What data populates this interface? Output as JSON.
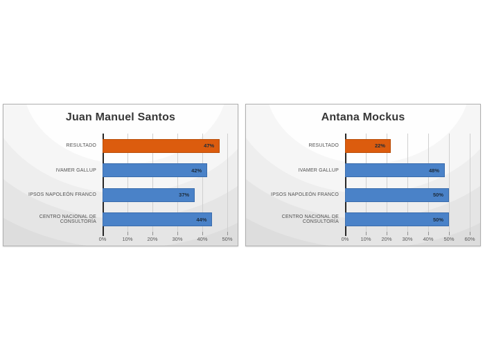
{
  "colors": {
    "resultado_orange": "#DC5C0E",
    "resultado_orange_border": "#B84D08",
    "pollster_blue": "#4A82C8",
    "pollster_blue_border": "#3A6CAC",
    "axis_line": "#262626",
    "gridline": "#cfcfcf"
  },
  "chart_data": [
    {
      "type": "bar",
      "orientation": "horizontal",
      "title": "Juan Manuel Santos",
      "categories": [
        "RESULTADO",
        "IVAMER GALLUP",
        "IPSOS NAPOLEÓN FRANCO",
        "CENTRO NACIONAL DE CONSULTORÍA"
      ],
      "values": [
        47,
        42,
        37,
        44
      ],
      "value_labels": [
        "47%",
        "42%",
        "37%",
        "44%"
      ],
      "bar_colors": [
        "#DC5C0E",
        "#4A82C8",
        "#4A82C8",
        "#4A82C8"
      ],
      "bar_border_colors": [
        "#B84D08",
        "#3A6CAC",
        "#3A6CAC",
        "#3A6CAC"
      ],
      "xlim": [
        0,
        50
      ],
      "xticks": [
        0,
        10,
        20,
        30,
        40,
        50
      ],
      "xtick_labels": [
        "0%",
        "10%",
        "20%",
        "30%",
        "40%",
        "50%"
      ],
      "grid": true,
      "legend": "none"
    },
    {
      "type": "bar",
      "orientation": "horizontal",
      "title": "Antana Mockus",
      "categories": [
        "RESULTADO",
        "IVAMER GALLUP",
        "IPSOS NAPOLEÓN FRANCO",
        "CENTRO NACIONAL DE CONSULTORÍA"
      ],
      "values": [
        22,
        48,
        50,
        50
      ],
      "value_labels": [
        "22%",
        "48%",
        "50%",
        "50%"
      ],
      "bar_colors": [
        "#DC5C0E",
        "#4A82C8",
        "#4A82C8",
        "#4A82C8"
      ],
      "bar_border_colors": [
        "#B84D08",
        "#3A6CAC",
        "#3A6CAC",
        "#3A6CAC"
      ],
      "xlim": [
        0,
        60
      ],
      "xticks": [
        0,
        10,
        20,
        30,
        40,
        50,
        60
      ],
      "xtick_labels": [
        "0%",
        "10%",
        "20%",
        "30%",
        "40%",
        "50%",
        "60%"
      ],
      "grid": true,
      "legend": "none"
    }
  ]
}
